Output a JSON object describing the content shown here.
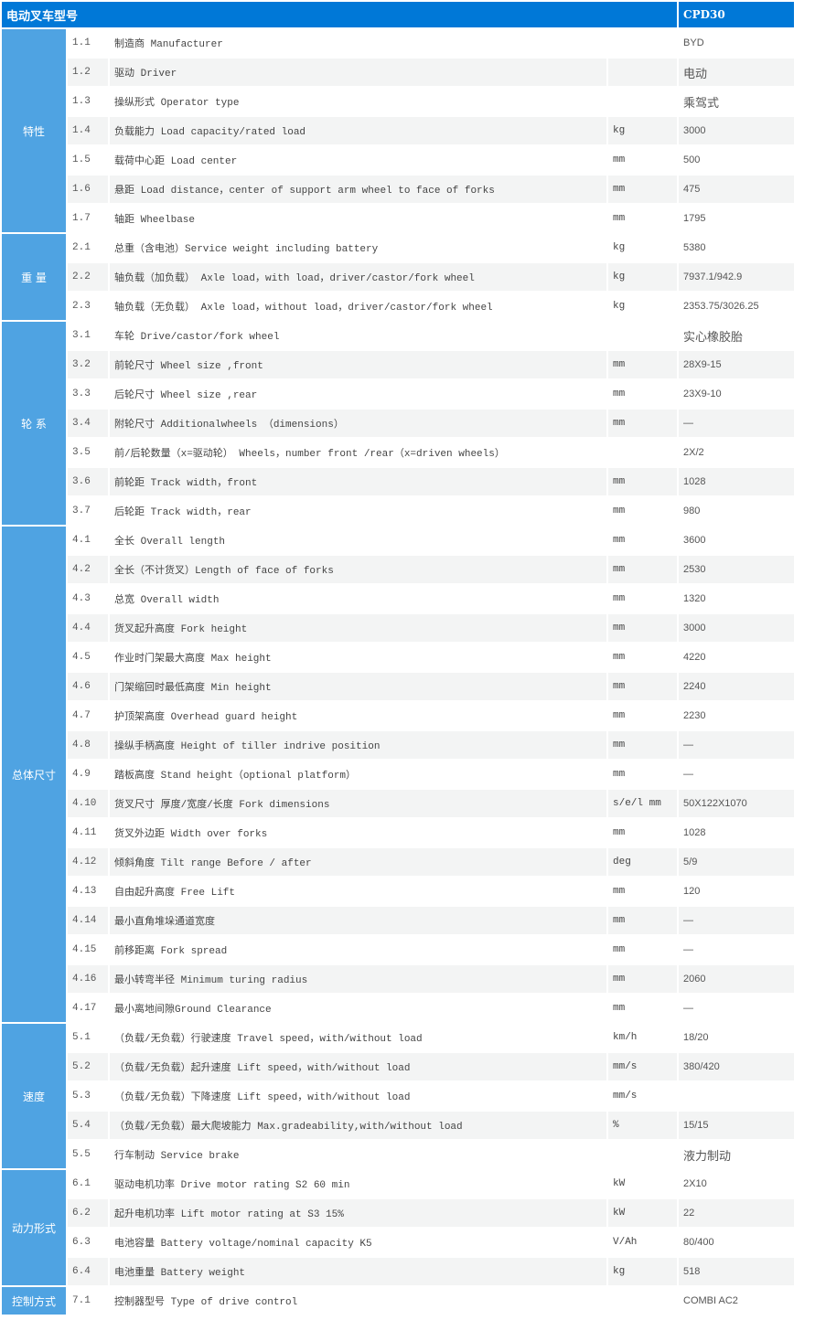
{
  "header": {
    "title": "电动叉车型号",
    "model": "CPD30"
  },
  "groups": [
    {
      "label": "特性",
      "rows": [
        [
          "1.1",
          "制造商 Manufacturer",
          "",
          "BYD"
        ],
        [
          "1.2",
          "驱动 Driver",
          "",
          "电动"
        ],
        [
          "1.3",
          "操纵形式 Operator type",
          "",
          "乘驾式"
        ],
        [
          "1.4",
          "负载能力 Load capacity/rated load",
          "kg",
          "3000"
        ],
        [
          "1.5",
          "载荷中心距 Load center",
          "mm",
          "500"
        ],
        [
          "1.6",
          "悬距 Load distance，center of support arm wheel to face of forks",
          "mm",
          "475"
        ],
        [
          "1.7",
          "轴距 Wheelbase",
          "mm",
          "1795"
        ]
      ]
    },
    {
      "label": "重 量",
      "rows": [
        [
          "2.1",
          "总重（含电池）Service weight including battery",
          "kg",
          "5380"
        ],
        [
          "2.2",
          "轴负载（加负载） Axle load，with load，driver/castor/fork wheel",
          "kg",
          "7937.1/942.9"
        ],
        [
          "2.3",
          "轴负载（无负载） Axle load，without load，driver/castor/fork wheel",
          "kg",
          "2353.75/3026.25"
        ]
      ]
    },
    {
      "label": "轮 系",
      "rows": [
        [
          "3.1",
          "车轮 Drive/castor/fork wheel",
          "",
          "实心橡胶胎"
        ],
        [
          "3.2",
          "前轮尺寸 Wheel size ,front",
          "mm",
          "28X9-15"
        ],
        [
          "3.3",
          "后轮尺寸 Wheel size ,rear",
          "mm",
          "23X9-10"
        ],
        [
          "3.4",
          "附轮尺寸 Additionalwheels （dimensions）",
          "mm",
          "—"
        ],
        [
          "3.5",
          "前/后轮数量（x=驱动轮） Wheels，number front /rear（x=driven wheels）",
          "",
          "2X/2"
        ],
        [
          "3.6",
          "前轮距 Track width，front",
          "mm",
          "1028"
        ],
        [
          "3.7",
          "后轮距 Track width，rear",
          "mm",
          "980"
        ]
      ]
    },
    {
      "label": "总体尺寸",
      "rows": [
        [
          "4.1",
          "全长 Overall length",
          "mm",
          "3600"
        ],
        [
          "4.2",
          "全长（不计货叉）Length of face of forks",
          "mm",
          "2530"
        ],
        [
          "4.3",
          "总宽 Overall width",
          "mm",
          "1320"
        ],
        [
          "4.4",
          "货叉起升高度 Fork height",
          "mm",
          "3000"
        ],
        [
          "4.5",
          "作业时门架最大高度 Max height",
          "mm",
          "4220"
        ],
        [
          "4.6",
          "门架缩回时最低高度 Min height",
          "mm",
          "2240"
        ],
        [
          "4.7",
          "护顶架高度 Overhead guard height",
          "mm",
          "2230"
        ],
        [
          "4.8",
          "操纵手柄高度 Height of tiller indrive position",
          "mm",
          "—"
        ],
        [
          "4.9",
          "踏板高度 Stand height（optional platform）",
          "mm",
          "—"
        ],
        [
          "4.10",
          "货叉尺寸 厚度/宽度/长度 Fork dimensions",
          "s/e/l mm",
          "50X122X1070"
        ],
        [
          "4.11",
          "货叉外边距 Width over forks",
          "mm",
          "1028"
        ],
        [
          "4.12",
          "倾斜角度 Tilt range Before / after",
          "deg",
          "5/9"
        ],
        [
          "4.13",
          "自由起升高度 Free Lift",
          "mm",
          "120"
        ],
        [
          "4.14",
          "最小直角堆垛通道宽度",
          "mm",
          "—"
        ],
        [
          "4.15",
          "前移距离 Fork spread",
          "mm",
          "—"
        ],
        [
          "4.16",
          "最小转弯半径 Minimum turing radius",
          "mm",
          "2060"
        ],
        [
          "4.17",
          "最小离地间隙Ground Clearance",
          "mm",
          "—"
        ]
      ]
    },
    {
      "label": "速度",
      "rows": [
        [
          "5.1",
          "（负载/无负载）行驶速度 Travel speed，with/without load",
          "km/h",
          "18/20"
        ],
        [
          "5.2",
          "（负载/无负载）起升速度 Lift speed，with/without load",
          "mm/s",
          "380/420"
        ],
        [
          "5.3",
          "（负载/无负载）下降速度 Lift speed，with/without load",
          "mm/s",
          ""
        ],
        [
          "5.4",
          "（负载/无负载）最大爬坡能力 Max.gradeability,with/without load",
          "%",
          "15/15"
        ],
        [
          "5.5",
          "行车制动 Service brake",
          "",
          "液力制动"
        ]
      ]
    },
    {
      "label": "动力形式",
      "rows": [
        [
          "6.1",
          "驱动电机功率 Drive motor rating S2 60 min",
          "kW",
          "2X10"
        ],
        [
          "6.2",
          "起升电机功率 Lift motor rating at S3 15%",
          "kW",
          "22"
        ],
        [
          "6.3",
          "电池容量 Battery voltage/nominal capacity K5",
          "V/Ah",
          "80/400"
        ],
        [
          "6.4",
          "电池重量 Battery weight",
          "kg",
          "518"
        ]
      ]
    },
    {
      "label": "控制方式",
      "rows": [
        [
          "7.1",
          "控制器型号 Type of drive control",
          "",
          "COMBI AC2"
        ]
      ]
    }
  ]
}
